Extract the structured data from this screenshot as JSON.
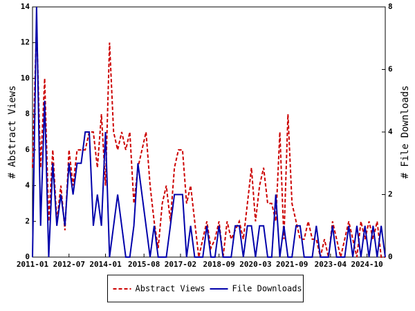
{
  "chart_data": {
    "type": "line",
    "ylabel": "# Abstract Views",
    "y2label": "# File Downloads",
    "x": [
      "2011-01",
      "2011-03",
      "2011-05",
      "2011-07",
      "2011-09",
      "2011-11",
      "2012-01",
      "2012-03",
      "2012-05",
      "2012-07",
      "2012-09",
      "2012-11",
      "2013-01",
      "2013-03",
      "2013-05",
      "2013-07",
      "2013-09",
      "2013-11",
      "2014-01",
      "2014-03",
      "2014-05",
      "2014-07",
      "2014-09",
      "2014-11",
      "2015-01",
      "2015-03",
      "2015-05",
      "2015-07",
      "2015-09",
      "2015-11",
      "2016-01",
      "2016-03",
      "2016-05",
      "2016-07",
      "2016-09",
      "2016-11",
      "2017-01",
      "2017-03",
      "2017-05",
      "2017-07",
      "2017-09",
      "2017-11",
      "2018-01",
      "2018-03",
      "2018-05",
      "2018-07",
      "2018-09",
      "2018-11",
      "2019-01",
      "2019-03",
      "2019-05",
      "2019-07",
      "2019-09",
      "2019-11",
      "2020-01",
      "2020-03",
      "2020-05",
      "2020-07",
      "2020-09",
      "2020-11",
      "2021-01",
      "2021-03",
      "2021-05",
      "2021-07",
      "2021-09",
      "2021-11",
      "2022-01",
      "2022-03",
      "2022-05",
      "2022-07",
      "2022-09",
      "2022-11",
      "2023-01",
      "2023-03",
      "2023-05",
      "2023-07",
      "2023-09",
      "2023-11",
      "2024-01",
      "2024-03",
      "2024-05",
      "2024-07",
      "2024-09",
      "2024-11",
      "2025-01",
      "2025-03",
      "2025-05",
      "2025-07"
    ],
    "xlim": [
      "2011-01",
      "2025-07"
    ],
    "xticks": [
      "2011-01",
      "2012-07",
      "2014-01",
      "2015-08",
      "2017-02",
      "2018-09",
      "2020-03",
      "2021-09",
      "2023-04",
      "2024-10"
    ],
    "ylim": [
      0,
      14
    ],
    "yticks": [
      0,
      2,
      4,
      6,
      8,
      10,
      12,
      14
    ],
    "y2lim": [
      0,
      8
    ],
    "y2ticks": [
      0,
      2,
      4,
      6,
      8
    ],
    "legend": "bottom",
    "series": [
      {
        "name": "Abstract Views",
        "color": "#cc0000",
        "dashed": true,
        "values": [
          5,
          13,
          5,
          10,
          2,
          6,
          2,
          4,
          1.5,
          6,
          4,
          6,
          6,
          6,
          7,
          7,
          5,
          8,
          4,
          12,
          7,
          6,
          7,
          6,
          7,
          3,
          5,
          6,
          7,
          4,
          2,
          0.5,
          3,
          4,
          2,
          5,
          6,
          6,
          3,
          4,
          2,
          0,
          1,
          2,
          0.5,
          1,
          2,
          0,
          2,
          1,
          1.5,
          2,
          1,
          3,
          5,
          2,
          4,
          5,
          3,
          3,
          2,
          7,
          1,
          8,
          3,
          2,
          1,
          1,
          2,
          1,
          1,
          0,
          1,
          0,
          2,
          1,
          0,
          1,
          2,
          1,
          0,
          2,
          1,
          2,
          1,
          2,
          0,
          0
        ]
      },
      {
        "name": "File Downloads",
        "color": "#0000aa",
        "axis": "y2",
        "dashed": false,
        "values": [
          0,
          8,
          1,
          5,
          0,
          3,
          1,
          2,
          1,
          3,
          2,
          3,
          3,
          4,
          4,
          1,
          2,
          1,
          4,
          0,
          1,
          2,
          1,
          0,
          0,
          1,
          3,
          2,
          1,
          0,
          1,
          0,
          0,
          0,
          1,
          2,
          2,
          2,
          0,
          1,
          0,
          0,
          0,
          1,
          0,
          0,
          1,
          0,
          0,
          0,
          1,
          1,
          0,
          1,
          1,
          0,
          1,
          1,
          0,
          0,
          2,
          0,
          1,
          0,
          0,
          1,
          1,
          0,
          0,
          0,
          1,
          0,
          0,
          0,
          1,
          0,
          0,
          0,
          1,
          0,
          1,
          0,
          1,
          0,
          1,
          0,
          1,
          0
        ]
      }
    ]
  }
}
